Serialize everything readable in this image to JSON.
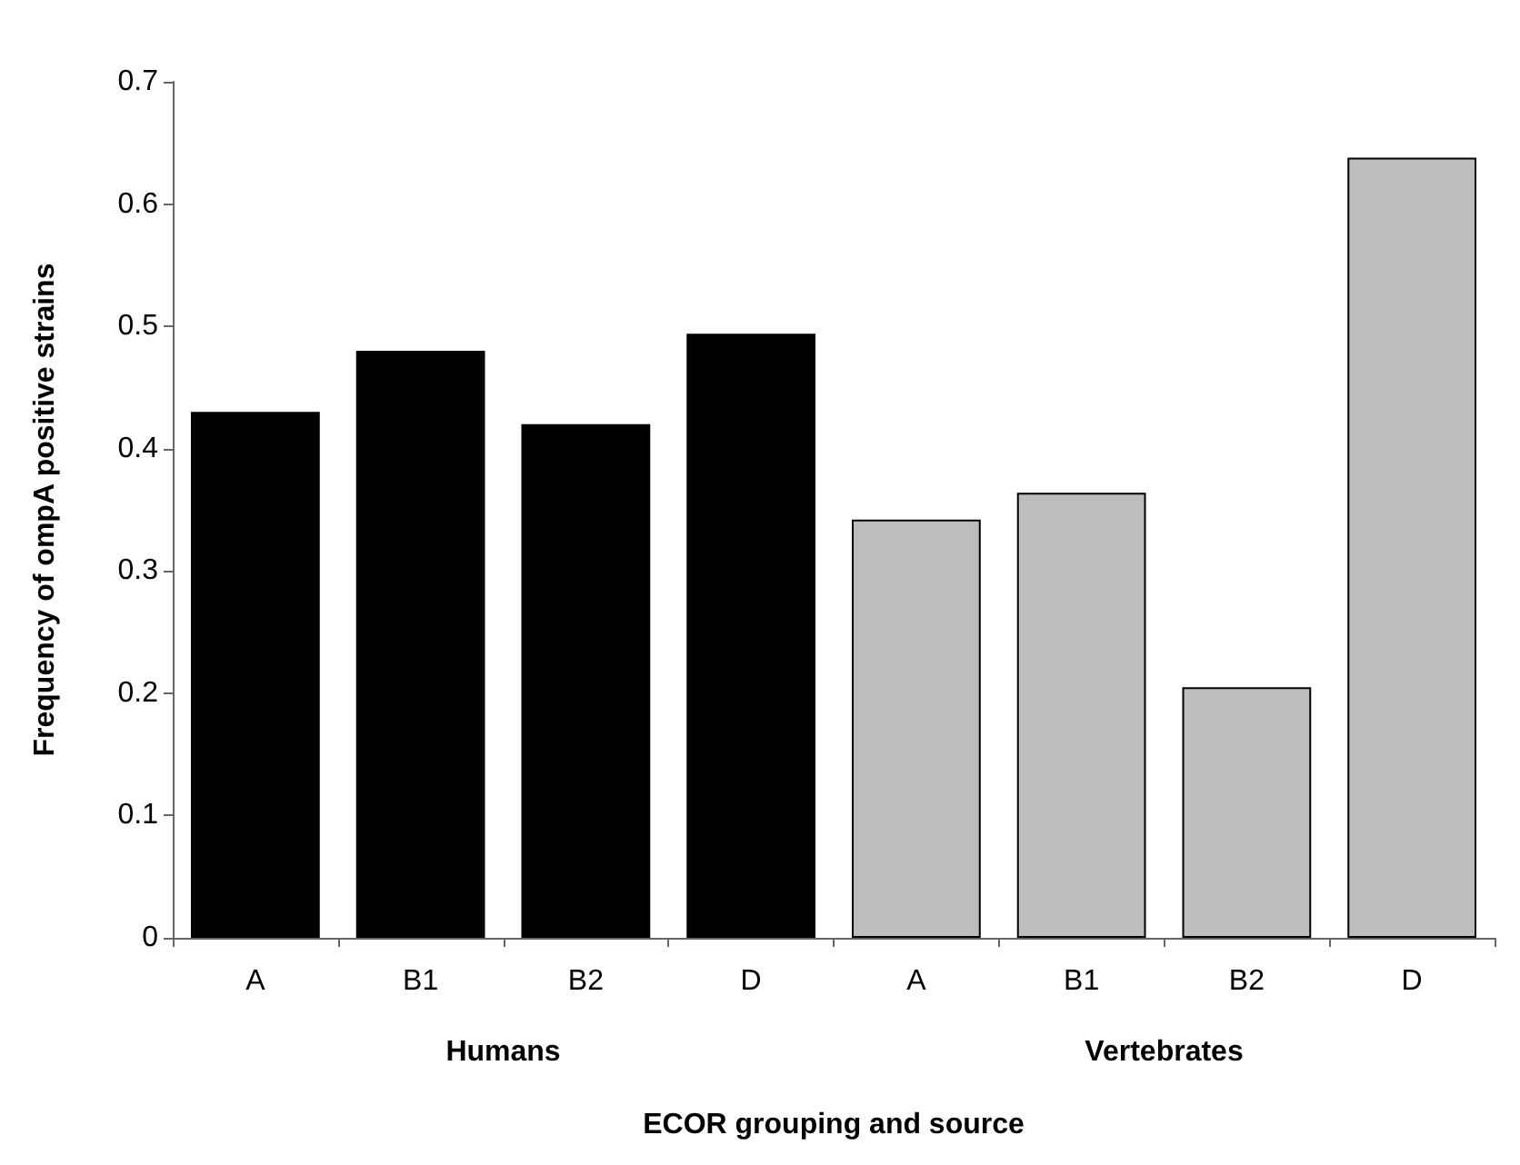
{
  "chart_data": {
    "type": "bar",
    "xlabel": "ECOR grouping and source",
    "ylabel": "Frequency of ompA positive strains",
    "categories": [
      "A",
      "B1",
      "B2",
      "D",
      "A",
      "B1",
      "B2",
      "D"
    ],
    "values": [
      0.43,
      0.48,
      0.42,
      0.494,
      0.342,
      0.364,
      0.205,
      0.638
    ],
    "colors": [
      "#000000",
      "#000000",
      "#000000",
      "#000000",
      "#bdbdbd",
      "#bdbdbd",
      "#bdbdbd",
      "#bdbdbd"
    ],
    "annotations": [
      "Humans",
      "Vertebrates"
    ],
    "ylim": [
      0,
      0.7
    ],
    "yticks": [
      0,
      0.1,
      0.2,
      0.3,
      0.4,
      0.5,
      0.6,
      0.7
    ],
    "grid": false
  }
}
